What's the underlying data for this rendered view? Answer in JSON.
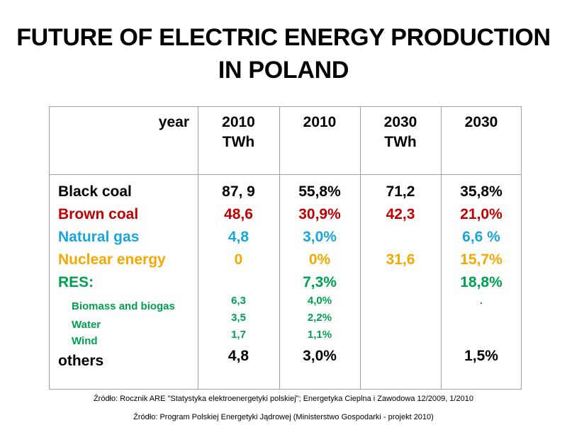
{
  "title": {
    "line1": "FUTURE OF ELECTRIC ENERGY PRODUCTION",
    "line2": "IN POLAND"
  },
  "colors": {
    "black": "#000000",
    "brown_coal": "#c00000",
    "natural_gas": "#1aa6dc",
    "nuclear": "#f5a800",
    "res": "#00a050"
  },
  "table": {
    "header": {
      "year": "year",
      "col1_line1": "2010",
      "col1_line2": "TWh",
      "col2_line1": "2010",
      "col3_line1": "2030",
      "col3_line2": "TWh",
      "col4_line1": "2030"
    },
    "rows": [
      {
        "label": "Black coal",
        "v2010_twh": "87, 9",
        "v2010_pct": "55,8%",
        "v2030_twh": "71,2",
        "v2030_pct": "35,8%"
      },
      {
        "label": "Brown coal",
        "v2010_twh": "48,6",
        "v2010_pct": "30,9%",
        "v2030_twh": "42,3",
        "v2030_pct": "21,0%"
      },
      {
        "label": "Natural gas",
        "v2010_twh": "4,8",
        "v2010_pct": "3,0%",
        "v2030_twh": "",
        "v2030_pct": "6,6 %"
      },
      {
        "label": "Nuclear energy",
        "v2010_twh": "0",
        "v2010_pct": "0%",
        "v2030_twh": "31,6",
        "v2030_pct": "15,7%"
      },
      {
        "label": "RES:",
        "v2010_twh": "",
        "v2010_pct": "7,3%",
        "v2030_twh": "",
        "v2030_pct": "18,8%"
      }
    ],
    "res_sub": [
      {
        "label": "Biomass and biogas",
        "v2010_twh": "6,3",
        "v2010_pct": "4,0%",
        "v2030_pct": "."
      },
      {
        "label": "Water",
        "v2010_twh": "3,5",
        "v2010_pct": "2,2%"
      },
      {
        "label": "Wind",
        "v2010_twh": "1,7",
        "v2010_pct": "1,1%"
      }
    ],
    "others": {
      "label": "others",
      "v2010_twh": "4,8",
      "v2010_pct": "3,0%",
      "v2030_twh": "",
      "v2030_pct": "1,5%"
    }
  },
  "sources": {
    "line1": "Źródło: Rocznik ARE \"Statystyka elektroenergetyki polskiej\"; Energetyka Cieplna i Zawodowa 12/2009, 1/2010",
    "line2": "Źródło: Program Polskiej Energetyki Jądrowej (Ministerstwo Gospodarki  - projekt 2010)"
  }
}
